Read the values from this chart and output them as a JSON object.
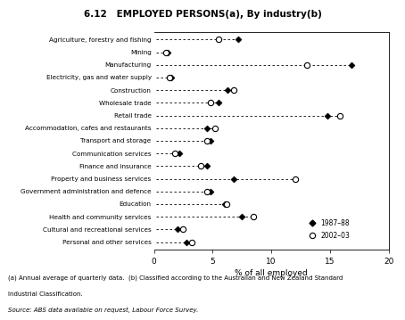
{
  "title": "6.12   EMPLOYED PERSONS(a), By industry(b)",
  "categories": [
    "Agriculture, forestry and fishing",
    "Mining",
    "Manufacturing",
    "Electricity, gas and water supply",
    "Construction",
    "Wholesale trade",
    "Retail trade",
    "Accommodation, cafes and restaurants",
    "Transport and storage",
    "Communication services",
    "Finance and insurance",
    "Property and business services",
    "Government administration and defence",
    "Education",
    "Health and community services",
    "Cultural and recreational services",
    "Personal and other services"
  ],
  "series_1987": [
    7.2,
    1.2,
    16.8,
    1.5,
    6.3,
    5.5,
    14.8,
    4.5,
    4.8,
    2.2,
    4.5,
    6.8,
    4.8,
    6.0,
    7.5,
    2.0,
    2.8
  ],
  "series_2003": [
    5.5,
    1.0,
    13.0,
    1.3,
    6.8,
    4.8,
    15.8,
    5.2,
    4.5,
    1.8,
    4.0,
    12.0,
    4.5,
    6.2,
    8.5,
    2.5,
    3.2
  ],
  "xlabel": "% of all employed",
  "xlim": [
    0,
    20
  ],
  "xticks": [
    0,
    5,
    10,
    15,
    20
  ],
  "legend_1987": "1987–88",
  "legend_2003": "2002–03",
  "footnote1": "(a) Annual average of quarterly data.  (b) Classified according to the Australian and New Zealand Standard",
  "footnote2": "Industrial Classification.",
  "source": "Source: ABS data available on request, Labour Force Survey."
}
